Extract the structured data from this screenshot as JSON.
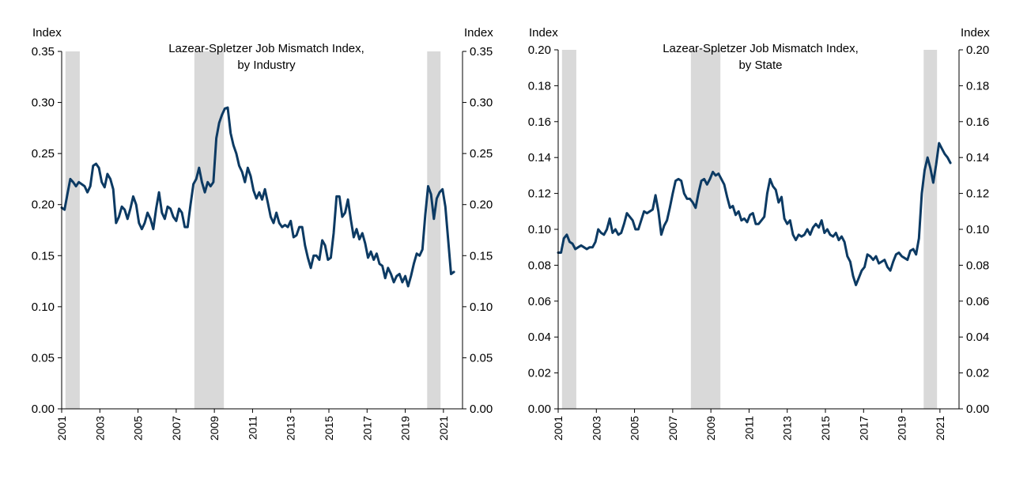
{
  "chart_data": [
    {
      "type": "line",
      "title": "Lazear-Spletzer Job Mismatch Index,",
      "subtitle": "by Industry",
      "ylabel_left": "Index",
      "ylabel_right": "Index",
      "xlabel": "",
      "ylim": [
        0,
        0.35
      ],
      "yticks": [
        0.0,
        0.05,
        0.1,
        0.15,
        0.2,
        0.25,
        0.3,
        0.35
      ],
      "ytick_labels": [
        "0.00",
        "0.05",
        "0.10",
        "0.15",
        "0.20",
        "0.25",
        "0.30",
        "0.35"
      ],
      "xlim": [
        2001,
        2022
      ],
      "xticks": [
        2001,
        2003,
        2005,
        2007,
        2009,
        2011,
        2013,
        2015,
        2017,
        2019,
        2021
      ],
      "xtick_labels": [
        "2001",
        "2003",
        "2005",
        "2007",
        "2009",
        "2011",
        "2013",
        "2015",
        "2017",
        "2019",
        "2021"
      ],
      "line_color": "#0c3a63",
      "recession_color": "#d9d9d9",
      "recessions": [
        [
          2001.2,
          2001.95
        ],
        [
          2007.95,
          2009.5
        ],
        [
          2020.15,
          2020.85
        ]
      ],
      "grid": false,
      "legend": "none",
      "series": [
        {
          "x": [
            2001.0,
            2001.15,
            2001.3,
            2001.45,
            2001.6,
            2001.75,
            2001.9,
            2002.05,
            2002.2,
            2002.35,
            2002.5,
            2002.65,
            2002.8,
            2002.95,
            2003.1,
            2003.25,
            2003.4,
            2003.55,
            2003.7,
            2003.85,
            2004.0,
            2004.15,
            2004.3,
            2004.45,
            2004.6,
            2004.75,
            2004.9,
            2005.05,
            2005.2,
            2005.35,
            2005.5,
            2005.65,
            2005.8,
            2005.95,
            2006.1,
            2006.25,
            2006.4,
            2006.55,
            2006.7,
            2006.85,
            2007.0,
            2007.15,
            2007.3,
            2007.45,
            2007.6,
            2007.75,
            2007.9,
            2008.05,
            2008.2,
            2008.35,
            2008.5,
            2008.65,
            2008.8,
            2008.95,
            2009.1,
            2009.25,
            2009.4,
            2009.55,
            2009.7,
            2009.85,
            2010.0,
            2010.15,
            2010.3,
            2010.45,
            2010.6,
            2010.75,
            2010.9,
            2011.05,
            2011.2,
            2011.35,
            2011.5,
            2011.65,
            2011.8,
            2011.95,
            2012.1,
            2012.25,
            2012.4,
            2012.55,
            2012.7,
            2012.85,
            2013.0,
            2013.15,
            2013.3,
            2013.45,
            2013.6,
            2013.75,
            2013.9,
            2014.05,
            2014.2,
            2014.35,
            2014.5,
            2014.65,
            2014.8,
            2014.95,
            2015.1,
            2015.25,
            2015.4,
            2015.55,
            2015.7,
            2015.85,
            2016.0,
            2016.15,
            2016.3,
            2016.45,
            2016.6,
            2016.75,
            2016.9,
            2017.05,
            2017.2,
            2017.35,
            2017.5,
            2017.65,
            2017.8,
            2017.95,
            2018.1,
            2018.25,
            2018.4,
            2018.55,
            2018.7,
            2018.85,
            2019.0,
            2019.15,
            2019.3,
            2019.45,
            2019.6,
            2019.75,
            2019.9,
            2020.05,
            2020.2,
            2020.35,
            2020.5,
            2020.65,
            2020.8,
            2020.95,
            2021.1,
            2021.25,
            2021.4,
            2021.55
          ],
          "y": [
            0.197,
            0.195,
            0.21,
            0.225,
            0.222,
            0.218,
            0.222,
            0.22,
            0.218,
            0.212,
            0.218,
            0.238,
            0.24,
            0.236,
            0.222,
            0.217,
            0.23,
            0.225,
            0.215,
            0.182,
            0.188,
            0.198,
            0.195,
            0.186,
            0.196,
            0.208,
            0.2,
            0.182,
            0.176,
            0.182,
            0.192,
            0.186,
            0.176,
            0.196,
            0.212,
            0.192,
            0.186,
            0.198,
            0.196,
            0.188,
            0.184,
            0.196,
            0.192,
            0.178,
            0.178,
            0.2,
            0.22,
            0.225,
            0.236,
            0.222,
            0.212,
            0.222,
            0.218,
            0.222,
            0.265,
            0.28,
            0.288,
            0.294,
            0.295,
            0.27,
            0.258,
            0.25,
            0.238,
            0.232,
            0.222,
            0.236,
            0.228,
            0.214,
            0.206,
            0.212,
            0.205,
            0.215,
            0.202,
            0.188,
            0.182,
            0.192,
            0.182,
            0.178,
            0.18,
            0.178,
            0.184,
            0.168,
            0.17,
            0.178,
            0.178,
            0.16,
            0.148,
            0.138,
            0.15,
            0.15,
            0.146,
            0.165,
            0.16,
            0.146,
            0.148,
            0.172,
            0.208,
            0.208,
            0.188,
            0.192,
            0.205,
            0.185,
            0.168,
            0.176,
            0.166,
            0.172,
            0.162,
            0.148,
            0.154,
            0.146,
            0.152,
            0.142,
            0.14,
            0.128,
            0.138,
            0.132,
            0.124,
            0.13,
            0.132,
            0.124,
            0.13,
            0.12,
            0.13,
            0.142,
            0.152,
            0.15,
            0.156,
            0.19,
            0.218,
            0.21,
            0.186,
            0.206,
            0.212,
            0.215,
            0.198,
            0.165,
            0.132,
            0.134
          ]
        }
      ]
    },
    {
      "type": "line",
      "title": "Lazear-Spletzer Job Mismatch Index,",
      "subtitle": "by State",
      "ylabel_left": "Index",
      "ylabel_right": "Index",
      "xlabel": "",
      "ylim": [
        0,
        0.2
      ],
      "yticks": [
        0.0,
        0.02,
        0.04,
        0.06,
        0.08,
        0.1,
        0.12,
        0.14,
        0.16,
        0.18,
        0.2
      ],
      "ytick_labels": [
        "0.00",
        "0.02",
        "0.04",
        "0.06",
        "0.08",
        "0.10",
        "0.12",
        "0.14",
        "0.16",
        "0.18",
        "0.20"
      ],
      "xlim": [
        2001,
        2022
      ],
      "xticks": [
        2001,
        2003,
        2005,
        2007,
        2009,
        2011,
        2013,
        2015,
        2017,
        2019,
        2021
      ],
      "xtick_labels": [
        "2001",
        "2003",
        "2005",
        "2007",
        "2009",
        "2011",
        "2013",
        "2015",
        "2017",
        "2019",
        "2021"
      ],
      "line_color": "#0c3a63",
      "recession_color": "#d9d9d9",
      "recessions": [
        [
          2001.2,
          2001.95
        ],
        [
          2007.95,
          2009.5
        ],
        [
          2020.15,
          2020.85
        ]
      ],
      "grid": false,
      "legend": "none",
      "series": [
        {
          "x": [
            2001.0,
            2001.15,
            2001.3,
            2001.45,
            2001.6,
            2001.75,
            2001.9,
            2002.05,
            2002.2,
            2002.35,
            2002.5,
            2002.65,
            2002.8,
            2002.95,
            2003.1,
            2003.25,
            2003.4,
            2003.55,
            2003.7,
            2003.85,
            2004.0,
            2004.15,
            2004.3,
            2004.45,
            2004.6,
            2004.75,
            2004.9,
            2005.05,
            2005.2,
            2005.35,
            2005.5,
            2005.65,
            2005.8,
            2005.95,
            2006.1,
            2006.25,
            2006.4,
            2006.55,
            2006.7,
            2006.85,
            2007.0,
            2007.15,
            2007.3,
            2007.45,
            2007.6,
            2007.75,
            2007.9,
            2008.05,
            2008.2,
            2008.35,
            2008.5,
            2008.65,
            2008.8,
            2008.95,
            2009.1,
            2009.25,
            2009.4,
            2009.55,
            2009.7,
            2009.85,
            2010.0,
            2010.15,
            2010.3,
            2010.45,
            2010.6,
            2010.75,
            2010.9,
            2011.05,
            2011.2,
            2011.35,
            2011.5,
            2011.65,
            2011.8,
            2011.95,
            2012.1,
            2012.25,
            2012.4,
            2012.55,
            2012.7,
            2012.85,
            2013.0,
            2013.15,
            2013.3,
            2013.45,
            2013.6,
            2013.75,
            2013.9,
            2014.05,
            2014.2,
            2014.35,
            2014.5,
            2014.65,
            2014.8,
            2014.95,
            2015.1,
            2015.25,
            2015.4,
            2015.55,
            2015.7,
            2015.85,
            2016.0,
            2016.15,
            2016.3,
            2016.45,
            2016.6,
            2016.75,
            2016.9,
            2017.05,
            2017.2,
            2017.35,
            2017.5,
            2017.65,
            2017.8,
            2017.95,
            2018.1,
            2018.25,
            2018.4,
            2018.55,
            2018.7,
            2018.85,
            2019.0,
            2019.15,
            2019.3,
            2019.45,
            2019.6,
            2019.75,
            2019.9,
            2020.05,
            2020.2,
            2020.35,
            2020.5,
            2020.65,
            2020.8,
            2020.95,
            2021.1,
            2021.25,
            2021.4,
            2021.55
          ],
          "y": [
            0.087,
            0.087,
            0.095,
            0.097,
            0.093,
            0.092,
            0.089,
            0.09,
            0.091,
            0.09,
            0.089,
            0.09,
            0.09,
            0.093,
            0.1,
            0.098,
            0.097,
            0.1,
            0.106,
            0.098,
            0.1,
            0.097,
            0.098,
            0.103,
            0.109,
            0.107,
            0.105,
            0.1,
            0.1,
            0.105,
            0.11,
            0.109,
            0.11,
            0.111,
            0.119,
            0.11,
            0.097,
            0.102,
            0.105,
            0.112,
            0.12,
            0.127,
            0.128,
            0.127,
            0.12,
            0.117,
            0.117,
            0.115,
            0.112,
            0.12,
            0.127,
            0.128,
            0.125,
            0.128,
            0.132,
            0.13,
            0.131,
            0.128,
            0.125,
            0.118,
            0.112,
            0.113,
            0.108,
            0.11,
            0.105,
            0.106,
            0.104,
            0.108,
            0.109,
            0.103,
            0.103,
            0.105,
            0.107,
            0.12,
            0.128,
            0.124,
            0.122,
            0.115,
            0.118,
            0.106,
            0.103,
            0.105,
            0.097,
            0.094,
            0.097,
            0.096,
            0.097,
            0.1,
            0.097,
            0.101,
            0.103,
            0.101,
            0.105,
            0.098,
            0.1,
            0.097,
            0.096,
            0.098,
            0.094,
            0.096,
            0.093,
            0.085,
            0.082,
            0.074,
            0.069,
            0.073,
            0.077,
            0.079,
            0.086,
            0.085,
            0.083,
            0.085,
            0.081,
            0.082,
            0.083,
            0.079,
            0.077,
            0.082,
            0.086,
            0.087,
            0.085,
            0.084,
            0.083,
            0.088,
            0.089,
            0.086,
            0.095,
            0.12,
            0.133,
            0.14,
            0.134,
            0.126,
            0.136,
            0.148,
            0.145,
            0.142,
            0.14,
            0.137
          ]
        }
      ]
    }
  ]
}
